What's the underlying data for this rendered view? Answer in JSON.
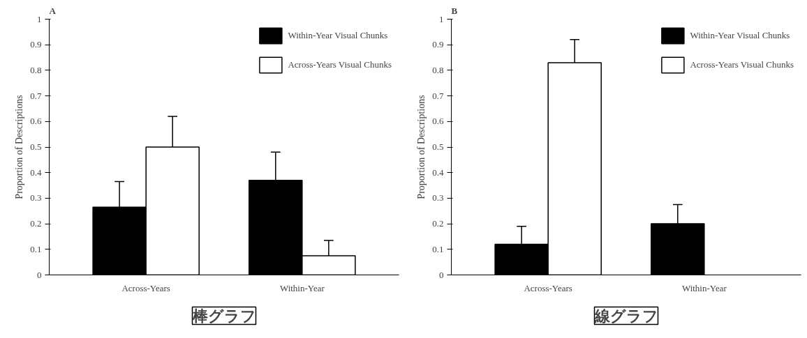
{
  "chart_data": [
    {
      "type": "bar",
      "title": "A",
      "ylabel": "Proportion of Descriptions",
      "categories": [
        "Across-Years",
        "Within-Year"
      ],
      "ylim": [
        0,
        1
      ],
      "yticks": [
        0,
        0.1,
        0.2,
        0.3,
        0.4,
        0.5,
        0.6,
        0.7,
        0.8,
        0.9,
        1
      ],
      "legend": "top right",
      "grid": false,
      "series": [
        {
          "name": "Within-Year Visual Chunks",
          "color": "#000000",
          "values": [
            0.265,
            0.37
          ],
          "errors": [
            [
              0.265,
              0.365
            ],
            [
              0.37,
              0.48
            ]
          ]
        },
        {
          "name": "Across-Years Visual Chunks",
          "color": "#ffffff",
          "values": [
            0.5,
            0.075
          ],
          "errors": [
            [
              0.5,
              0.62
            ],
            [
              0.075,
              0.135
            ]
          ]
        }
      ],
      "annotations": [
        "棒グラフ"
      ]
    },
    {
      "type": "bar",
      "title": "B",
      "ylabel": "Proportion of Descriptions",
      "categories": [
        "Across-Years",
        "Within-Year"
      ],
      "ylim": [
        0,
        1
      ],
      "yticks": [
        0,
        0.1,
        0.2,
        0.3,
        0.4,
        0.5,
        0.6,
        0.7,
        0.8,
        0.9,
        1
      ],
      "legend": "top right",
      "grid": false,
      "series": [
        {
          "name": "Within-Year Visual Chunks",
          "color": "#000000",
          "values": [
            0.12,
            0.2
          ],
          "errors": [
            [
              0.12,
              0.19
            ],
            [
              0.2,
              0.275
            ]
          ]
        },
        {
          "name": "Across-Years Visual Chunks",
          "color": "#ffffff",
          "values": [
            0.83,
            null
          ],
          "errors": [
            [
              0.83,
              0.92
            ],
            null
          ]
        }
      ],
      "annotations": [
        "線グラフ"
      ]
    }
  ]
}
